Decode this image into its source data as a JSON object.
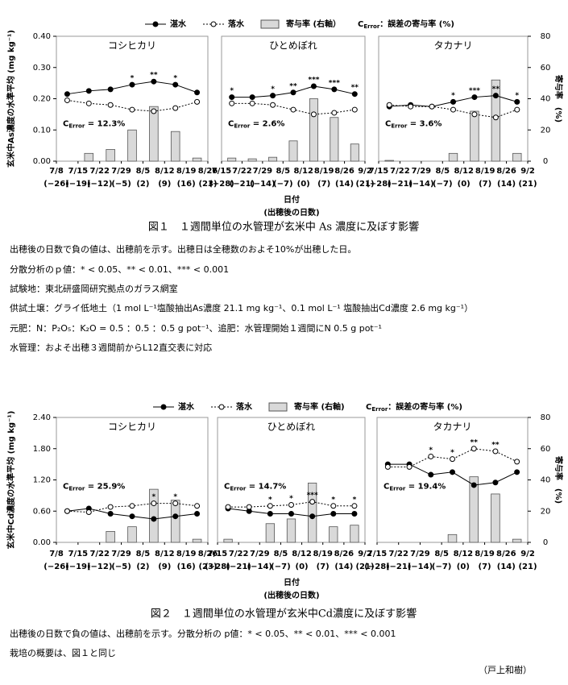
{
  "figure1": {
    "caption": "図１　１週間単位の水管理が玄米中 As 濃度に及ぼす影響",
    "xlabel": [
      "日付",
      "(出穂後の日数)"
    ],
    "cerror_legend": [
      "C",
      "Error",
      "：誤差の寄与率 (%)"
    ],
    "notes": [
      "出穂後の日数で負の値は、出穂前を示す。出穂日は全穂数のおよそ10%が出穂した日。",
      "分散分析のｐ値：* < 0.05、** < 0.01、*** < 0.001",
      "試験地：東北研盛岡研究拠点のガラス網室",
      "供試土壌：グライ低地土（1 mol L⁻¹塩酸抽出As濃度 21.1 mg kg⁻¹、0.1 mol L⁻¹ 塩酸抽出Cd濃度 2.6 mg kg⁻¹）",
      "元肥：N：P₂O₅：K₂O = 0.5 ：0.5 ：0.5 g pot⁻¹、追肥：水管理開始１週間にN 0.5 g pot⁻¹",
      "水管理：およそ出穂３週間前からL12直交表に対応"
    ]
  },
  "figure2": {
    "caption": "図２　１週間単位の水管理が玄米中Cd濃度に及ぼす影響",
    "xlabel": [
      "日付",
      "(出穂後の日数)"
    ],
    "cerror_legend": [
      "C",
      "Error",
      "：誤差の寄与率 (%)"
    ],
    "notes": [
      "出穂後の日数で負の値は、出穂前を示す。分散分析の p値：* < 0.05、** < 0.01、*** < 0.001",
      "栽培の概要は、図１と同じ"
    ]
  },
  "author": "（戸上和樹）",
  "chart_data": [
    {
      "type": "combo",
      "title": "コシヒカリ",
      "ylabel": "玄米中As濃度の水準平均 (mg kg⁻¹)",
      "boundaries": [
        "7/8",
        "7/15",
        "7/22",
        "7/29",
        "8/5",
        "8/12",
        "8/19",
        "8/26"
      ],
      "boundary_days": [
        "(−26)",
        "(−19)",
        "(−12)",
        "(−5)",
        "(2)",
        "(9)",
        "(16)",
        "(23)"
      ],
      "series": [
        {
          "name": "湛水",
          "color": "#000000",
          "marker": "filled",
          "values": [
            0.215,
            0.225,
            0.23,
            0.245,
            0.255,
            0.245,
            0.22
          ]
        },
        {
          "name": "落水",
          "color": "#000000",
          "marker": "open",
          "dashed": true,
          "values": [
            0.195,
            0.185,
            0.18,
            0.165,
            0.16,
            0.17,
            0.19
          ]
        },
        {
          "name": "寄与率 (右軸）",
          "type": "bar",
          "axis": "y2",
          "color": "#d9d9d9",
          "values": [
            0,
            5,
            7.5,
            20,
            35,
            19,
            2
          ]
        }
      ],
      "stars": [
        null,
        null,
        null,
        "*",
        "**",
        "*",
        null
      ],
      "annotation": [
        "C",
        "Error",
        " = 12.3%"
      ],
      "ylim": [
        0,
        0.4
      ],
      "yticks": [
        {
          "value": 0,
          "label": "0.00"
        },
        {
          "value": 0.1,
          "label": "0.10"
        },
        {
          "value": 0.2,
          "label": "0.20"
        },
        {
          "value": 0.3,
          "label": "0.30"
        },
        {
          "value": 0.4,
          "label": "0.40"
        }
      ],
      "y2lim": [
        0,
        80
      ]
    },
    {
      "type": "combo",
      "title": "ひとめぼれ",
      "boundaries": [
        "7/15",
        "7/22",
        "7/29",
        "8/5",
        "8/12",
        "8/19",
        "8/26",
        "9/2"
      ],
      "boundary_days": [
        "(−28)",
        "(−21)",
        "(−14)",
        "(−7)",
        "(0)",
        "(7)",
        "(14)",
        "(21)"
      ],
      "series": [
        {
          "color": "#000000",
          "marker": "filled",
          "values": [
            0.205,
            0.205,
            0.21,
            0.22,
            0.24,
            0.23,
            0.215
          ]
        },
        {
          "color": "#000000",
          "marker": "open",
          "dashed": true,
          "values": [
            0.185,
            0.185,
            0.18,
            0.165,
            0.15,
            0.155,
            0.165
          ]
        },
        {
          "type": "bar",
          "axis": "y2",
          "color": "#d9d9d9",
          "values": [
            2,
            1.5,
            2.5,
            13,
            40,
            28,
            11
          ]
        }
      ],
      "stars": [
        "*",
        null,
        "*",
        "**",
        "***",
        "***",
        "**"
      ],
      "annotation": [
        "C",
        "Error",
        " = 2.6%"
      ],
      "ylim": [
        0,
        0.4
      ],
      "y2lim": [
        0,
        80
      ]
    },
    {
      "type": "combo",
      "title": "タカナリ",
      "y2label": "寄与率　(%)",
      "boundaries": [
        "7/15",
        "7/22",
        "7/29",
        "8/5",
        "8/12",
        "8/19",
        "8/26",
        "9/2"
      ],
      "boundary_days": [
        "(−28)",
        "(−21)",
        "(−14)",
        "(−7)",
        "(0)",
        "(7)",
        "(14)",
        "(21)"
      ],
      "series": [
        {
          "color": "#000000",
          "marker": "filled",
          "values": [
            0.175,
            0.18,
            0.175,
            0.19,
            0.205,
            0.21,
            0.19
          ]
        },
        {
          "color": "#000000",
          "marker": "open",
          "dashed": true,
          "values": [
            0.18,
            0.175,
            0.175,
            0.165,
            0.15,
            0.14,
            0.165
          ]
        },
        {
          "type": "bar",
          "axis": "y2",
          "color": "#d9d9d9",
          "values": [
            0.5,
            0,
            0,
            5,
            32,
            52,
            5
          ]
        }
      ],
      "stars": [
        null,
        null,
        null,
        "*",
        "***",
        "**",
        "*"
      ],
      "annotation": [
        "C",
        "Error",
        " = 3.6%"
      ],
      "ylim": [
        0,
        0.4
      ],
      "y2lim": [
        0,
        80
      ],
      "y2ticks": [
        0,
        20,
        40,
        60,
        80
      ]
    },
    {
      "type": "combo",
      "title": "コシヒカリ",
      "ylabel": "玄米中Cd濃度の水準平均 (mg kg⁻¹)",
      "boundaries": [
        "7/8",
        "7/15",
        "7/22",
        "7/29",
        "8/5",
        "8/12",
        "8/19",
        "8/26"
      ],
      "boundary_days": [
        "(−26)",
        "(−19)",
        "(−12)",
        "(−5)",
        "(2)",
        "(9)",
        "(16)",
        "(23)"
      ],
      "series": [
        {
          "name": "湛水",
          "color": "#000000",
          "marker": "filled",
          "values": [
            0.6,
            0.65,
            0.55,
            0.5,
            0.45,
            0.5,
            0.55
          ]
        },
        {
          "name": "落水",
          "color": "#000000",
          "marker": "open",
          "dashed": true,
          "values": [
            0.6,
            0.58,
            0.68,
            0.7,
            0.75,
            0.75,
            0.7
          ]
        },
        {
          "name": "寄与率 (右軸)",
          "type": "bar",
          "axis": "y2",
          "color": "#d9d9d9",
          "values": [
            0,
            0,
            7,
            10,
            34,
            27,
            2
          ]
        }
      ],
      "stars": [
        null,
        null,
        null,
        null,
        "*",
        "*",
        null
      ],
      "annotation": [
        "C",
        "Error",
        " = 25.9%"
      ],
      "ylim": [
        0,
        2.4
      ],
      "yticks": [
        {
          "value": 0,
          "label": "0.00"
        },
        {
          "value": 0.6,
          "label": "0.60"
        },
        {
          "value": 1.2,
          "label": "1.20"
        },
        {
          "value": 1.8,
          "label": "1.80"
        },
        {
          "value": 2.4,
          "label": "2.40"
        }
      ],
      "y2lim": [
        0,
        80
      ]
    },
    {
      "type": "combo",
      "title": "ひとめぼれ",
      "boundaries": [
        "7/15",
        "7/22",
        "7/29",
        "8/5",
        "8/12",
        "8/19",
        "8/26",
        "9/2"
      ],
      "boundary_days": [
        "(−28)",
        "(−21)",
        "(−14)",
        "(−7)",
        "(0)",
        "(7)",
        "(14)",
        "(21)"
      ],
      "series": [
        {
          "color": "#000000",
          "marker": "filled",
          "values": [
            0.65,
            0.6,
            0.55,
            0.55,
            0.5,
            0.55,
            0.55
          ]
        },
        {
          "color": "#000000",
          "marker": "open",
          "dashed": true,
          "values": [
            0.68,
            0.68,
            0.7,
            0.72,
            0.78,
            0.7,
            0.7
          ]
        },
        {
          "type": "bar",
          "axis": "y2",
          "color": "#d9d9d9",
          "values": [
            2,
            0,
            12,
            15,
            38,
            10,
            11
          ]
        }
      ],
      "stars": [
        null,
        null,
        "*",
        "*",
        "***",
        "*",
        "*"
      ],
      "annotation": [
        "C",
        "Error",
        " = 14.7%"
      ],
      "ylim": [
        0,
        2.4
      ],
      "y2lim": [
        0,
        80
      ]
    },
    {
      "type": "combo",
      "title": "タカナリ",
      "y2label": "寄与率　(%)",
      "boundaries": [
        "7/15",
        "7/22",
        "7/29",
        "8/5",
        "8/12",
        "8/19",
        "8/26",
        "9/2"
      ],
      "boundary_days": [
        "(−28)",
        "(−21)",
        "(−14)",
        "(−7)",
        "(0)",
        "(7)",
        "(14)",
        "(21)"
      ],
      "series": [
        {
          "color": "#000000",
          "marker": "filled",
          "values": [
            1.5,
            1.5,
            1.3,
            1.35,
            1.1,
            1.15,
            1.35
          ]
        },
        {
          "color": "#000000",
          "marker": "open",
          "dashed": true,
          "values": [
            1.45,
            1.45,
            1.65,
            1.6,
            1.8,
            1.75,
            1.55
          ]
        },
        {
          "type": "bar",
          "axis": "y2",
          "color": "#d9d9d9",
          "values": [
            0,
            0,
            0,
            5,
            42,
            31,
            2
          ]
        }
      ],
      "stars": [
        null,
        null,
        "*",
        "*",
        "**",
        "**",
        null
      ],
      "annotation": [
        "C",
        "Error",
        " = 19.4%"
      ],
      "ylim": [
        0,
        2.4
      ],
      "y2lim": [
        0,
        80
      ],
      "y2ticks": [
        0,
        20,
        40,
        60,
        80
      ]
    }
  ]
}
